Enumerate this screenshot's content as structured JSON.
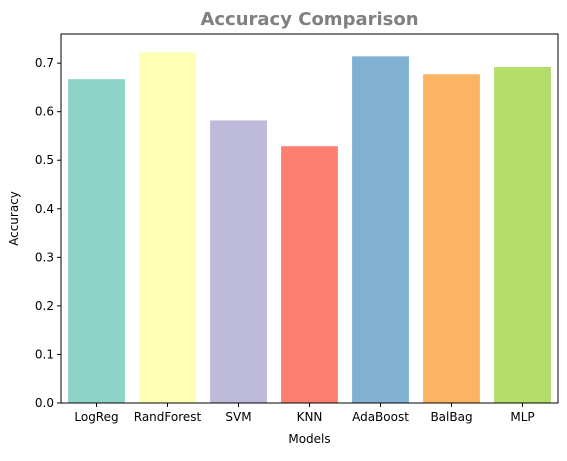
{
  "chart_data": {
    "type": "bar",
    "title": "Accuracy Comparison",
    "xlabel": "Models",
    "ylabel": "Accuracy",
    "categories": [
      "LogReg",
      "RandForest",
      "SVM",
      "KNN",
      "AdaBoost",
      "BalBag",
      "MLP"
    ],
    "values": [
      0.667,
      0.722,
      0.582,
      0.529,
      0.714,
      0.677,
      0.692
    ],
    "colors": [
      "#8dd3c7",
      "#ffffb3",
      "#bebada",
      "#fb8072",
      "#80b1d3",
      "#fdb462",
      "#b3de69"
    ],
    "ylim": [
      0,
      0.76
    ],
    "yticks": [
      0.0,
      0.1,
      0.2,
      0.3,
      0.4,
      0.5,
      0.6,
      0.7
    ],
    "ytick_labels": [
      "0.0",
      "0.1",
      "0.2",
      "0.3",
      "0.4",
      "0.5",
      "0.6",
      "0.7"
    ],
    "grid": false,
    "legend": "none"
  }
}
